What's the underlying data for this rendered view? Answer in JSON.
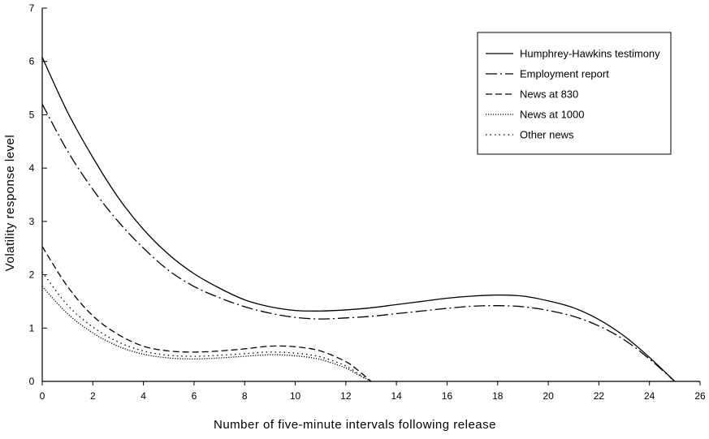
{
  "chart_data": {
    "type": "line",
    "xlabel": "Number of five-minute intervals following release",
    "ylabel": "Volatility response level",
    "xlim": [
      0,
      26
    ],
    "ylim": [
      0,
      7
    ],
    "xticks": [
      0,
      2,
      4,
      6,
      8,
      10,
      12,
      14,
      16,
      18,
      20,
      22,
      24,
      26
    ],
    "yticks": [
      0,
      1,
      2,
      3,
      4,
      5,
      6,
      7
    ],
    "grid": false,
    "legend_position": "top-right",
    "series": [
      {
        "name": "Humphrey-Hawkins testimony",
        "dash": "solid",
        "x": [
          0,
          1,
          2,
          3,
          4,
          5,
          6,
          7,
          8,
          9,
          10,
          11,
          12,
          13,
          14,
          15,
          16,
          17,
          18,
          19,
          20,
          21,
          22,
          23,
          24,
          25
        ],
        "y": [
          6.08,
          5.05,
          4.2,
          3.45,
          2.85,
          2.38,
          2.02,
          1.75,
          1.53,
          1.4,
          1.33,
          1.32,
          1.34,
          1.38,
          1.44,
          1.5,
          1.56,
          1.6,
          1.62,
          1.6,
          1.51,
          1.38,
          1.16,
          0.85,
          0.45,
          0.0
        ]
      },
      {
        "name": "Employment report",
        "dash": "dashdot",
        "x": [
          0,
          1,
          2,
          3,
          4,
          5,
          6,
          7,
          8,
          9,
          10,
          11,
          12,
          13,
          14,
          15,
          16,
          17,
          18,
          19,
          20,
          21,
          22,
          23,
          24,
          25
        ],
        "y": [
          5.2,
          4.32,
          3.6,
          3.0,
          2.5,
          2.08,
          1.78,
          1.57,
          1.4,
          1.28,
          1.2,
          1.17,
          1.19,
          1.22,
          1.27,
          1.32,
          1.37,
          1.41,
          1.42,
          1.4,
          1.33,
          1.22,
          1.04,
          0.78,
          0.42,
          0.0
        ]
      },
      {
        "name": "News at 830",
        "dash": "dashed",
        "x": [
          0,
          1,
          2,
          3,
          4,
          5,
          6,
          7,
          8,
          9,
          10,
          11,
          12,
          12.5,
          13
        ],
        "y": [
          2.53,
          1.78,
          1.23,
          0.88,
          0.66,
          0.57,
          0.55,
          0.57,
          0.61,
          0.66,
          0.65,
          0.57,
          0.37,
          0.2,
          0.0
        ]
      },
      {
        "name": "News at 1000",
        "dash": "fine-dotted",
        "x": [
          0,
          1,
          2,
          3,
          4,
          5,
          6,
          7,
          8,
          9,
          10,
          11,
          12,
          12.5,
          13
        ],
        "y": [
          1.78,
          1.27,
          0.91,
          0.66,
          0.51,
          0.44,
          0.42,
          0.44,
          0.47,
          0.5,
          0.48,
          0.41,
          0.25,
          0.12,
          0.0
        ]
      },
      {
        "name": "Other news",
        "dash": "dotted",
        "x": [
          0,
          1,
          2,
          3,
          4,
          5,
          6,
          7,
          8,
          9,
          10,
          11,
          12,
          12.5,
          13
        ],
        "y": [
          2.05,
          1.43,
          1.02,
          0.74,
          0.57,
          0.49,
          0.47,
          0.49,
          0.52,
          0.55,
          0.53,
          0.46,
          0.29,
          0.14,
          0.0
        ]
      }
    ]
  }
}
